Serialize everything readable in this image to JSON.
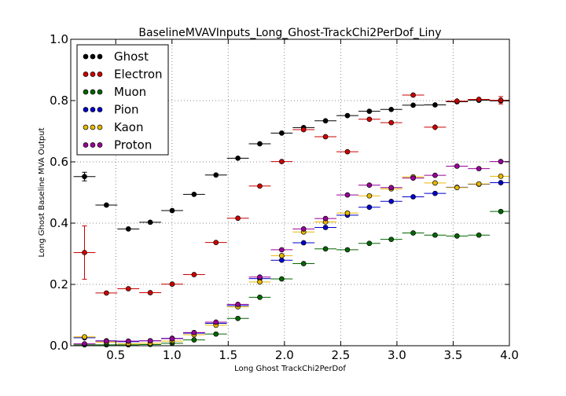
{
  "chart_data": {
    "type": "scatter",
    "title": "BaselineMVAVInputs_Long_Ghost-TrackChi2PerDof_Liny",
    "xlabel": "Long Ghost TrackChi2PerDof",
    "ylabel": "Long Ghost Baseline MVA Output",
    "xlim": [
      0.1,
      4.0
    ],
    "ylim": [
      0.0,
      1.0
    ],
    "xticks": [
      0.5,
      1.0,
      1.5,
      2.0,
      2.5,
      3.0,
      3.5,
      4.0
    ],
    "xtick_labels": [
      "0.5",
      "1.0",
      "1.5",
      "2.0",
      "2.5",
      "3.0",
      "3.5",
      "4.0"
    ],
    "yticks": [
      0.0,
      0.2,
      0.4,
      0.6,
      0.8,
      1.0
    ],
    "ytick_labels": [
      "0.0",
      "0.2",
      "0.4",
      "0.6",
      "0.8",
      "1.0"
    ],
    "grid": true,
    "legend_position": "top-left",
    "x": [
      0.2224,
      0.4172,
      0.612,
      0.8068,
      1.0016,
      1.1964,
      1.3912,
      1.586,
      1.7808,
      1.9756,
      2.1704,
      2.3652,
      2.56,
      2.7548,
      2.9496,
      3.1444,
      3.3392,
      3.534,
      3.7288,
      3.9236
    ],
    "x_halfwidth": 0.0974,
    "series": [
      {
        "name": "Ghost",
        "color": "#000000",
        "values": [
          0.552,
          0.459,
          0.381,
          0.403,
          0.441,
          0.494,
          0.557,
          0.612,
          0.659,
          0.694,
          0.712,
          0.734,
          0.751,
          0.765,
          0.771,
          0.785,
          0.786,
          0.796,
          0.801,
          0.799
        ],
        "yerr": [
          0.014,
          0.005,
          0.004,
          0.004,
          0.003,
          0.003,
          0.003,
          0.003,
          0.003,
          0.003,
          0.003,
          0.003,
          0.003,
          0.003,
          0.003,
          0.003,
          0.004,
          0.004,
          0.005,
          0.005
        ]
      },
      {
        "name": "Electron",
        "color": "#cc0000",
        "values": [
          0.304,
          0.172,
          0.186,
          0.173,
          0.201,
          0.232,
          0.337,
          0.416,
          0.521,
          0.601,
          0.705,
          0.682,
          0.633,
          0.739,
          0.728,
          0.818,
          0.713,
          0.798,
          0.804,
          0.801
        ],
        "yerr": [
          0.087,
          0.005,
          0.005,
          0.005,
          0.005,
          0.005,
          0.005,
          0.005,
          0.005,
          0.005,
          0.005,
          0.005,
          0.005,
          0.006,
          0.006,
          0.006,
          0.01,
          0.01,
          0.009,
          0.012
        ]
      },
      {
        "name": "Muon",
        "color": "#006600",
        "values": [
          0.003,
          0.003,
          0.003,
          0.004,
          0.008,
          0.019,
          0.038,
          0.089,
          0.158,
          0.218,
          0.268,
          0.316,
          0.313,
          0.334,
          0.347,
          0.368,
          0.361,
          0.358,
          0.361,
          0.438
        ],
        "yerr": [
          0.002,
          0.001,
          0.001,
          0.001,
          0.002,
          0.002,
          0.002,
          0.003,
          0.003,
          0.003,
          0.003,
          0.003,
          0.003,
          0.003,
          0.003,
          0.003,
          0.003,
          0.003,
          0.004,
          0.004
        ]
      },
      {
        "name": "Pion",
        "color": "#0000cc",
        "values": [
          0.026,
          0.016,
          0.013,
          0.016,
          0.024,
          0.041,
          0.073,
          0.131,
          0.219,
          0.279,
          0.336,
          0.386,
          0.426,
          0.452,
          0.471,
          0.486,
          0.497,
          0.517,
          0.527,
          0.532
        ],
        "yerr": [
          0.002,
          0.001,
          0.001,
          0.001,
          0.001,
          0.001,
          0.002,
          0.002,
          0.002,
          0.002,
          0.002,
          0.002,
          0.002,
          0.002,
          0.002,
          0.002,
          0.002,
          0.002,
          0.002,
          0.002
        ]
      },
      {
        "name": "Kaon",
        "color": "#e6b800",
        "values": [
          0.029,
          0.012,
          0.006,
          0.008,
          0.015,
          0.036,
          0.067,
          0.127,
          0.208,
          0.294,
          0.371,
          0.404,
          0.433,
          0.489,
          0.512,
          0.551,
          0.531,
          0.516,
          0.528,
          0.553
        ],
        "yerr": [
          0.002,
          0.001,
          0.001,
          0.001,
          0.001,
          0.002,
          0.002,
          0.002,
          0.002,
          0.002,
          0.002,
          0.002,
          0.002,
          0.002,
          0.002,
          0.002,
          0.002,
          0.002,
          0.002,
          0.002
        ]
      },
      {
        "name": "Proton",
        "color": "#990099",
        "values": [
          0.006,
          0.015,
          0.015,
          0.016,
          0.023,
          0.043,
          0.077,
          0.135,
          0.224,
          0.313,
          0.381,
          0.415,
          0.492,
          0.524,
          0.516,
          0.547,
          0.556,
          0.586,
          0.578,
          0.601
        ],
        "yerr": [
          0.002,
          0.001,
          0.001,
          0.001,
          0.001,
          0.001,
          0.002,
          0.002,
          0.002,
          0.002,
          0.002,
          0.002,
          0.002,
          0.002,
          0.002,
          0.002,
          0.002,
          0.002,
          0.002,
          0.002
        ]
      }
    ]
  }
}
